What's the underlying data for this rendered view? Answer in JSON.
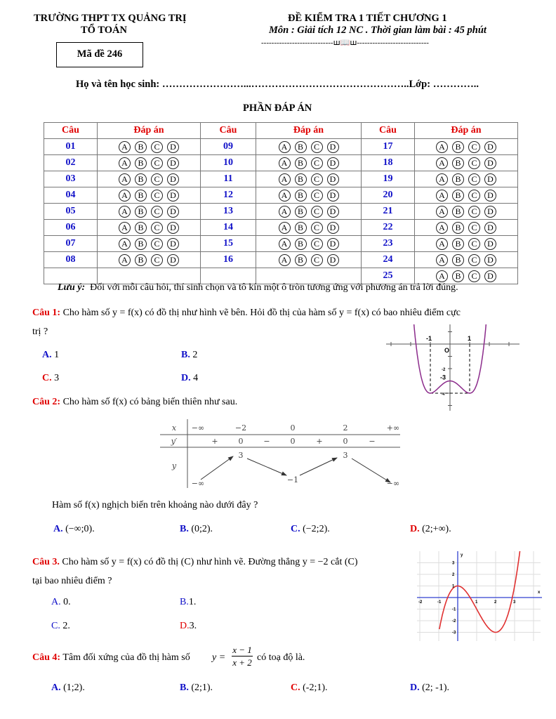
{
  "header": {
    "school": "TRƯỜNG THPT TX QUẢNG TRỊ",
    "dept": "TỔ TOÁN",
    "exam_code": "Mã đề 246",
    "title": "ĐỀ KIỂM TRA 1 TIẾT CHƯƠNG 1",
    "subtitle": "Môn : Giải tích 12 NC . Thời gian làm bài : 45 phút",
    "divider": "----------------------------ꟺ📖ꟺ----------------------------"
  },
  "student_line": "Họ và tên học sinh: ……………………...………………………………………..Lớp: …………..",
  "answer_section": {
    "title": "PHẦN ĐÁP ÁN",
    "col_q": "Câu",
    "col_a": "Đáp án",
    "options": [
      "A",
      "B",
      "C",
      "D"
    ],
    "rows": [
      [
        "01",
        "09",
        "17"
      ],
      [
        "02",
        "10",
        "18"
      ],
      [
        "03",
        "11",
        "19"
      ],
      [
        "04",
        "12",
        "20"
      ],
      [
        "05",
        "13",
        "21"
      ],
      [
        "06",
        "14",
        "22"
      ],
      [
        "07",
        "15",
        "23"
      ],
      [
        "08",
        "16",
        "24"
      ],
      [
        "",
        "",
        "25"
      ]
    ],
    "note_label": "Lưu ý:",
    "note": "Đối với mỗi câu hỏi, thí sinh chọn và tô kín một ô tròn tương ứng với phương án trả lời đúng."
  },
  "q1": {
    "label": "Câu 1:",
    "text1": "Cho hàm số  y = f(x)  có đồ thị như hình vẽ bên. Hỏi đồ thị của hàm số  y = f(x)  có bao nhiêu điểm cực",
    "text2": "trị ?",
    "A": "1",
    "B": "2",
    "C": "3",
    "D": "4",
    "graph": {
      "labels": {
        "xm1": "-1",
        "x1": "1",
        "o": "O",
        "ym2": "-2",
        "ym3": "-3",
        "ym4": "-4"
      },
      "color": "#8b2b8b"
    }
  },
  "q2": {
    "label": "Câu 2:",
    "text": "Cho hàm số f(x) có bảng biến thiên như sau.",
    "question": "Hàm số  f(x) nghịch biến trên khoảng nào dưới đây ?",
    "A": "(−∞;0).",
    "B": "(0;2).",
    "C": "(−2;2).",
    "D": "(2;+∞).",
    "table": {
      "x_label": "x",
      "yp_label": "y′",
      "y_label": "y",
      "x_values": [
        "−∞",
        "−2",
        "0",
        "2",
        "+∞"
      ],
      "signs": [
        "+",
        "0",
        "−",
        "0",
        "+",
        "0",
        "−"
      ],
      "y_values": [
        "−∞",
        "3",
        "−1",
        "3",
        "−∞"
      ]
    }
  },
  "q3": {
    "label": "Câu 3.",
    "text1": "Cho hàm số  y = f(x) có đồ thị (C) như hình vẽ. Đường thẳng  y = −2  cắt (C)",
    "text2": "tại bao nhiêu điểm ?",
    "A": "0.",
    "B": "1.",
    "C": "2.",
    "D": "3.",
    "graph": {
      "x_ticks": [
        "-2",
        "-1",
        "1",
        "2",
        "3"
      ],
      "y_ticks": [
        "3",
        "2",
        "1",
        "-1",
        "-2",
        "-3"
      ],
      "x_name": "x",
      "y_name": "y",
      "color": "#e03030",
      "axis_color": "#3040d0"
    }
  },
  "q4": {
    "label": "Câu 4:",
    "text": "Tâm đối xứng của đồ thị hàm số",
    "fn_lhs": "y =",
    "fn_num": "x − 1",
    "fn_den": "x + 2",
    "text_after": "có toạ độ là.",
    "A": "(1;2).",
    "B": "(2;1).",
    "C": "(-2;1).",
    "D": "(2; -1)."
  },
  "colors": {
    "label_red": "#e00000",
    "label_blue": "#1010c8"
  }
}
